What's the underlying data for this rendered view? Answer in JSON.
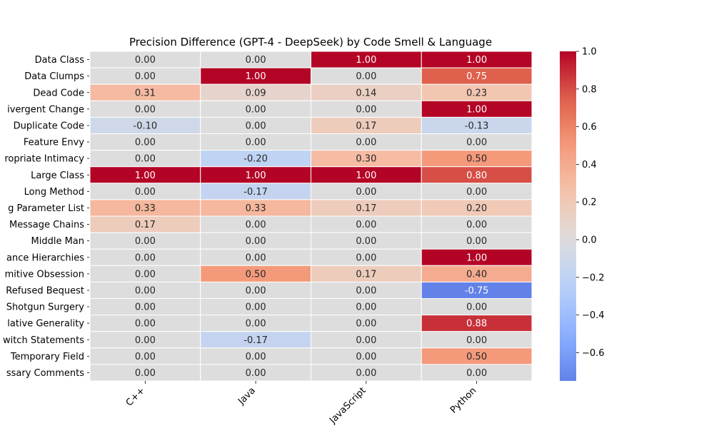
{
  "chart_data": {
    "type": "heatmap",
    "title": "Precision Difference (GPT-4 - DeepSeek) by Code Smell & Language",
    "xlabel": "",
    "ylabel": "",
    "columns": [
      "C++",
      "Java",
      "JavaScript",
      "Python"
    ],
    "rows": [
      "Data Class",
      "Data Clumps",
      "Dead Code",
      "Divergent Change",
      "Duplicate Code",
      "Feature Envy",
      "Inappropriate Intimacy",
      "Large Class",
      "Long Method",
      "Long Parameter List",
      "Message Chains",
      "Middle Man",
      "Parallel Inheritance Hierarchies",
      "Primitive Obsession",
      "Refused Bequest",
      "Shotgun Surgery",
      "Speculative Generality",
      "Switch Statements",
      "Temporary Field",
      "Unnecessary Comments"
    ],
    "row_labels_visible": [
      "Data Class",
      "Data Clumps",
      "Dead Code",
      "ivergent Change",
      "Duplicate Code",
      "Feature Envy",
      "ropriate Intimacy",
      "Large Class",
      "Long Method",
      "g Parameter List",
      "Message Chains",
      "Middle Man",
      "ance Hierarchies",
      "mitive Obsession",
      "Refused Bequest",
      "Shotgun Surgery",
      "lative Generality",
      "witch Statements",
      "Temporary Field",
      "ssary Comments"
    ],
    "values": [
      [
        0.0,
        0.0,
        1.0,
        1.0
      ],
      [
        0.0,
        1.0,
        0.0,
        0.75
      ],
      [
        0.31,
        0.09,
        0.14,
        0.23
      ],
      [
        0.0,
        0.0,
        0.0,
        1.0
      ],
      [
        -0.1,
        0.0,
        0.17,
        -0.13
      ],
      [
        0.0,
        0.0,
        0.0,
        0.0
      ],
      [
        0.0,
        -0.2,
        0.3,
        0.5
      ],
      [
        1.0,
        1.0,
        1.0,
        0.8
      ],
      [
        0.0,
        -0.17,
        0.0,
        0.0
      ],
      [
        0.33,
        0.33,
        0.17,
        0.2
      ],
      [
        0.17,
        0.0,
        0.0,
        0.0
      ],
      [
        0.0,
        0.0,
        0.0,
        0.0
      ],
      [
        0.0,
        0.0,
        0.0,
        1.0
      ],
      [
        0.0,
        0.5,
        0.17,
        0.4
      ],
      [
        0.0,
        0.0,
        0.0,
        -0.75
      ],
      [
        0.0,
        0.0,
        0.0,
        0.0
      ],
      [
        0.0,
        0.0,
        0.0,
        0.88
      ],
      [
        0.0,
        -0.17,
        0.0,
        0.0
      ],
      [
        0.0,
        0.0,
        0.0,
        0.5
      ],
      [
        0.0,
        0.0,
        0.0,
        0.0
      ]
    ],
    "colormap": "coolwarm",
    "color_range": [
      -0.75,
      1.0
    ],
    "center": 0,
    "colorbar_ticks": [
      1.0,
      0.8,
      0.6,
      0.4,
      0.2,
      0.0,
      -0.2,
      -0.4,
      -0.6
    ],
    "colorbar_tick_labels": [
      "1.0",
      "0.8",
      "0.6",
      "0.4",
      "0.2",
      "0.0",
      "−0.2",
      "−0.4",
      "−0.6"
    ],
    "annotation_format": "0.00",
    "grid": false
  }
}
